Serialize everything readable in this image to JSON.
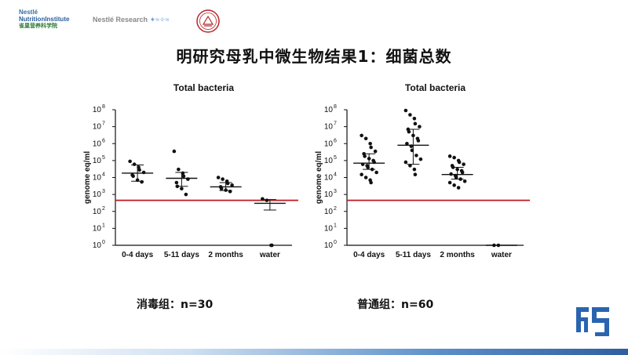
{
  "header": {
    "logo_nestle_top": "Nestlé",
    "logo_nni": "NutritionInstitute",
    "logo_cn": "雀巢营养科学院",
    "logo_research_brand": "Nestlé",
    "logo_research_label": "Research",
    "logo_research_tagline": "✦≈✧≈",
    "seal_icon": "university-seal-icon"
  },
  "title": "明研究母乳中微生物结果1：细菌总数",
  "colors": {
    "threshold_line": "#c0171d",
    "bottom_bar": "#2f5f9f",
    "corner_logo": "#2a64b0"
  },
  "chart_data": [
    {
      "type": "scatter",
      "title": "Total bacteria",
      "ylabel": "genome eq/ml",
      "yscale": "log",
      "ylim": [
        1,
        100000000
      ],
      "yticks": [
        {
          "exp": 0,
          "base": "10",
          "sup": "0"
        },
        {
          "exp": 1,
          "base": "10",
          "sup": "1"
        },
        {
          "exp": 2,
          "base": "10",
          "sup": "2"
        },
        {
          "exp": 3,
          "base": "10",
          "sup": "3"
        },
        {
          "exp": 4,
          "base": "10",
          "sup": "4"
        },
        {
          "exp": 5,
          "base": "10",
          "sup": "5"
        },
        {
          "exp": 6,
          "base": "10",
          "sup": "6"
        },
        {
          "exp": 7,
          "base": "10",
          "sup": "7"
        },
        {
          "exp": 8,
          "base": "10",
          "sup": "8"
        }
      ],
      "threshold": 450,
      "categories": [
        "0-4 days",
        "5-11 days",
        "2 months",
        "water"
      ],
      "groups": [
        {
          "name": "0-4 days",
          "values": [
            90000,
            60000,
            40000,
            28000,
            20000,
            14000,
            12000,
            7000,
            5500
          ],
          "center": 18000,
          "err_low": 6000,
          "err_high": 55000
        },
        {
          "name": "5-11 days",
          "values": [
            350000,
            30000,
            18000,
            12000,
            8000,
            5000,
            3000,
            2200,
            1000
          ],
          "center": 9000,
          "err_low": 3000,
          "err_high": 20000
        },
        {
          "name": "2 months",
          "values": [
            10000,
            8000,
            6000,
            4500,
            3500,
            2800,
            2200,
            1800,
            1500
          ],
          "center": 2800,
          "err_low": 1700,
          "err_high": 5000
        },
        {
          "name": "water",
          "values": [
            550,
            450,
            1,
            1
          ],
          "center": 300,
          "err_low": 120,
          "err_high": 500
        }
      ]
    },
    {
      "type": "scatter",
      "title": "Total bacteria",
      "ylabel": "genome eq/ml",
      "yscale": "log",
      "ylim": [
        1,
        100000000
      ],
      "yticks": [
        {
          "exp": 0,
          "base": "10",
          "sup": "0"
        },
        {
          "exp": 1,
          "base": "10",
          "sup": "1"
        },
        {
          "exp": 2,
          "base": "10",
          "sup": "2"
        },
        {
          "exp": 3,
          "base": "10",
          "sup": "3"
        },
        {
          "exp": 4,
          "base": "10",
          "sup": "4"
        },
        {
          "exp": 5,
          "base": "10",
          "sup": "5"
        },
        {
          "exp": 6,
          "base": "10",
          "sup": "6"
        },
        {
          "exp": 7,
          "base": "10",
          "sup": "7"
        },
        {
          "exp": 8,
          "base": "10",
          "sup": "8"
        }
      ],
      "threshold": 450,
      "categories": [
        "0-4 days",
        "5-11 days",
        "2 months",
        "water"
      ],
      "groups": [
        {
          "name": "0-4 days",
          "values": [
            3000000,
            2000000,
            1000000,
            600000,
            350000,
            250000,
            180000,
            130000,
            100000,
            80000,
            60000,
            50000,
            40000,
            30000,
            20000,
            15000,
            10000,
            7000,
            5000
          ],
          "center": 70000,
          "err_low": 30000,
          "err_high": 250000
        },
        {
          "name": "5-11 days",
          "values": [
            90000000,
            50000000,
            30000000,
            15000000,
            10000000,
            7000000,
            5000000,
            3000000,
            2000000,
            1500000,
            1000000,
            700000,
            400000,
            200000,
            120000,
            80000,
            50000,
            30000,
            15000
          ],
          "center": 800000,
          "err_low": 60000,
          "err_high": 7000000
        },
        {
          "name": "2 months",
          "values": [
            180000,
            150000,
            100000,
            80000,
            60000,
            50000,
            40000,
            30000,
            25000,
            20000,
            16000,
            13000,
            10000,
            8000,
            6000,
            5000,
            3500,
            2500
          ],
          "center": 15000,
          "err_low": 8000,
          "err_high": 40000
        },
        {
          "name": "water",
          "values": [
            1,
            1
          ],
          "center": 1,
          "err_low": 1,
          "err_high": 1
        }
      ]
    }
  ],
  "captions": {
    "left": "消毒组：n=30",
    "right": "普通组：n=60"
  },
  "corner_logo_icon": "brand-mark-icon"
}
